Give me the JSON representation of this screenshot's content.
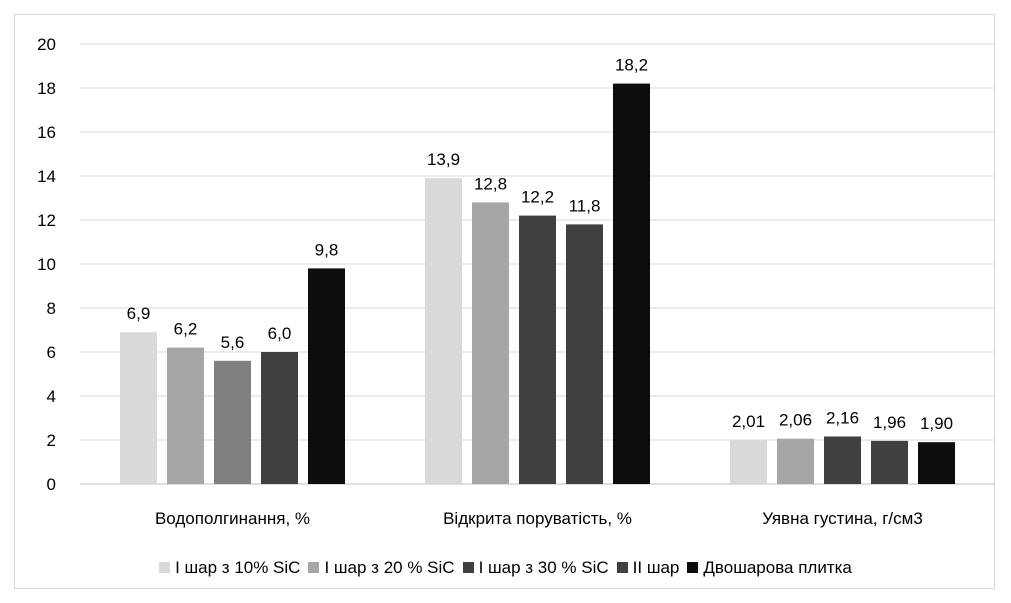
{
  "chart_data": {
    "type": "bar",
    "categories": [
      "Водополгинання, %",
      "Відкрита поруватість, %",
      "Уявна густина, г/см3"
    ],
    "series": [
      {
        "name": "I шар з 10% SiC",
        "color": "#d9d9d9",
        "values": [
          6.9,
          13.9,
          2.01
        ],
        "labels": [
          "6,9",
          "13,9",
          "2,01"
        ]
      },
      {
        "name": "I шар з 20 % SiC",
        "color": "#a6a6a6",
        "values": [
          6.2,
          12.8,
          2.06
        ],
        "labels": [
          "6,2",
          "12,8",
          "2,06"
        ]
      },
      {
        "name": "I шар з 30 % SiC",
        "color": "#7f7f7f",
        "legend_color": "#404040",
        "point_colors": [
          "#7f7f7f",
          "#404040",
          "#404040"
        ],
        "values": [
          5.6,
          12.2,
          2.16
        ],
        "labels": [
          "5,6",
          "12,2",
          "2,16"
        ]
      },
      {
        "name": "II шар",
        "color": "#404040",
        "values": [
          6.0,
          11.8,
          1.96
        ],
        "labels": [
          "6,0",
          "11,8",
          "1,96"
        ]
      },
      {
        "name": "Двошарова плитка",
        "color": "#0d0d0d",
        "values": [
          9.8,
          18.2,
          1.9
        ],
        "labels": [
          "9,8",
          "18,2",
          "1,90"
        ]
      }
    ],
    "ylim": [
      0,
      20
    ],
    "yticks": [
      0,
      2,
      4,
      6,
      8,
      10,
      12,
      14,
      16,
      18,
      20
    ],
    "grid": true,
    "legend_position": "bottom"
  }
}
